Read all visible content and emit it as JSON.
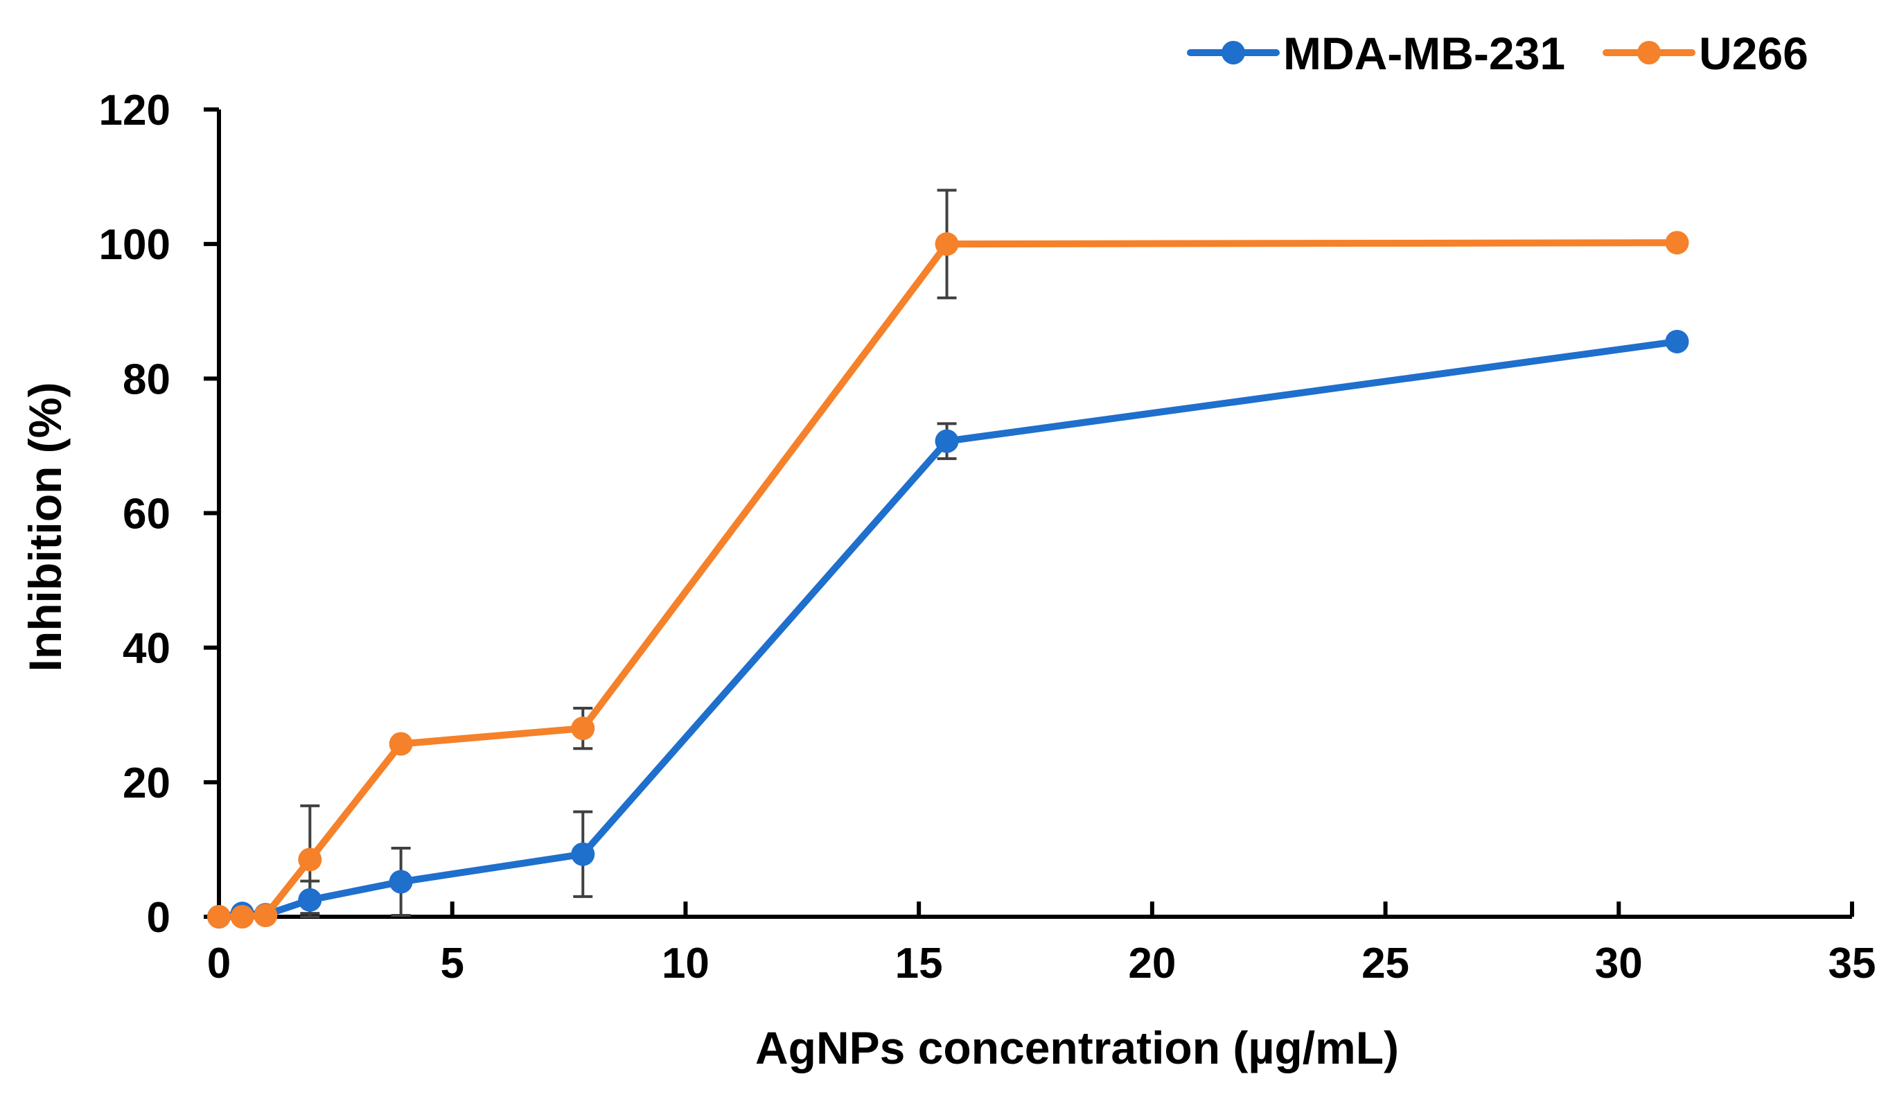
{
  "chart_data": {
    "type": "line",
    "title": "",
    "xlabel": "AgNPs concentration (µg/mL)",
    "ylabel": "Inhibition (%)",
    "xlim": [
      0,
      35
    ],
    "ylim": [
      0,
      120
    ],
    "xticks": [
      0,
      5,
      10,
      15,
      20,
      25,
      30,
      35
    ],
    "yticks": [
      0,
      20,
      40,
      60,
      80,
      100,
      120
    ],
    "grid": false,
    "legend_position": "top-right",
    "series": [
      {
        "name": "MDA-MB-231",
        "color": "#1f6fcc",
        "x": [
          0,
          0.5,
          1,
          1.95,
          3.9,
          7.8,
          15.6,
          31.25
        ],
        "y": [
          0,
          0.5,
          0.3,
          2.5,
          5.2,
          9.3,
          70.7,
          85.5
        ],
        "error": [
          0,
          0,
          0,
          2.8,
          5,
          6.3,
          2.6,
          0
        ]
      },
      {
        "name": "U266",
        "color": "#f5812a",
        "x": [
          0,
          0.5,
          1,
          1.95,
          3.9,
          7.8,
          15.6,
          31.25
        ],
        "y": [
          0,
          0,
          0.2,
          8.5,
          25.7,
          28,
          100,
          100.2
        ],
        "error": [
          0,
          0,
          0,
          8,
          0,
          3,
          8,
          0
        ]
      }
    ]
  }
}
